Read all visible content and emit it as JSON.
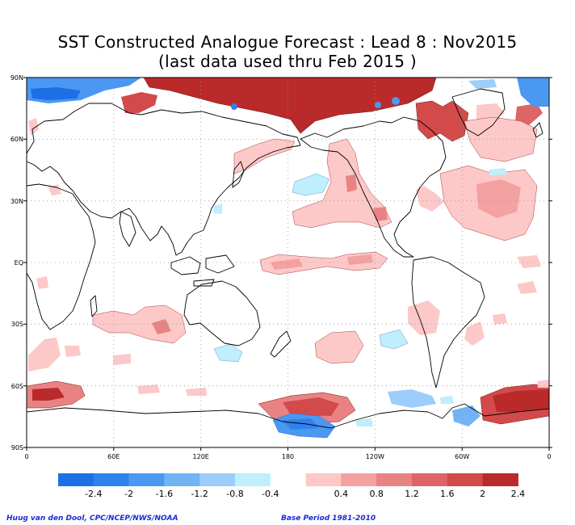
{
  "title": {
    "line1": "SST Constructed Analogue Forecast : Lead 8 : Nov2015",
    "line2": "(last data used thru Feb 2015 )"
  },
  "map": {
    "y_ticks": [
      "90N",
      "60N",
      "30N",
      "EQ",
      "30S",
      "60S",
      "90S"
    ],
    "x_ticks": [
      "0",
      "60E",
      "120E",
      "180",
      "120W",
      "60W",
      "0"
    ]
  },
  "legend": {
    "neg_labels": [
      "-2.4",
      "-2",
      "-1.6",
      "-1.2",
      "-0.8",
      "-0.4"
    ],
    "pos_labels": [
      "0.4",
      "0.8",
      "1.2",
      "1.6",
      "2",
      "2.4"
    ],
    "neg_colors": [
      "#1e6fe6",
      "#2f82ee",
      "#4a98f2",
      "#72b3f6",
      "#9dcdfa",
      "#bfeefc"
    ],
    "gap_color": "#ffffff",
    "pos_colors": [
      "#fcc8c8",
      "#f4a1a1",
      "#e98383",
      "#de6565",
      "#d24a4a",
      "#ba2a2a"
    ]
  },
  "credits": {
    "left": "Huug van den Dool, CPC/NCEP/NWS/NOAA",
    "right": "Base Period 1981-2010"
  }
}
